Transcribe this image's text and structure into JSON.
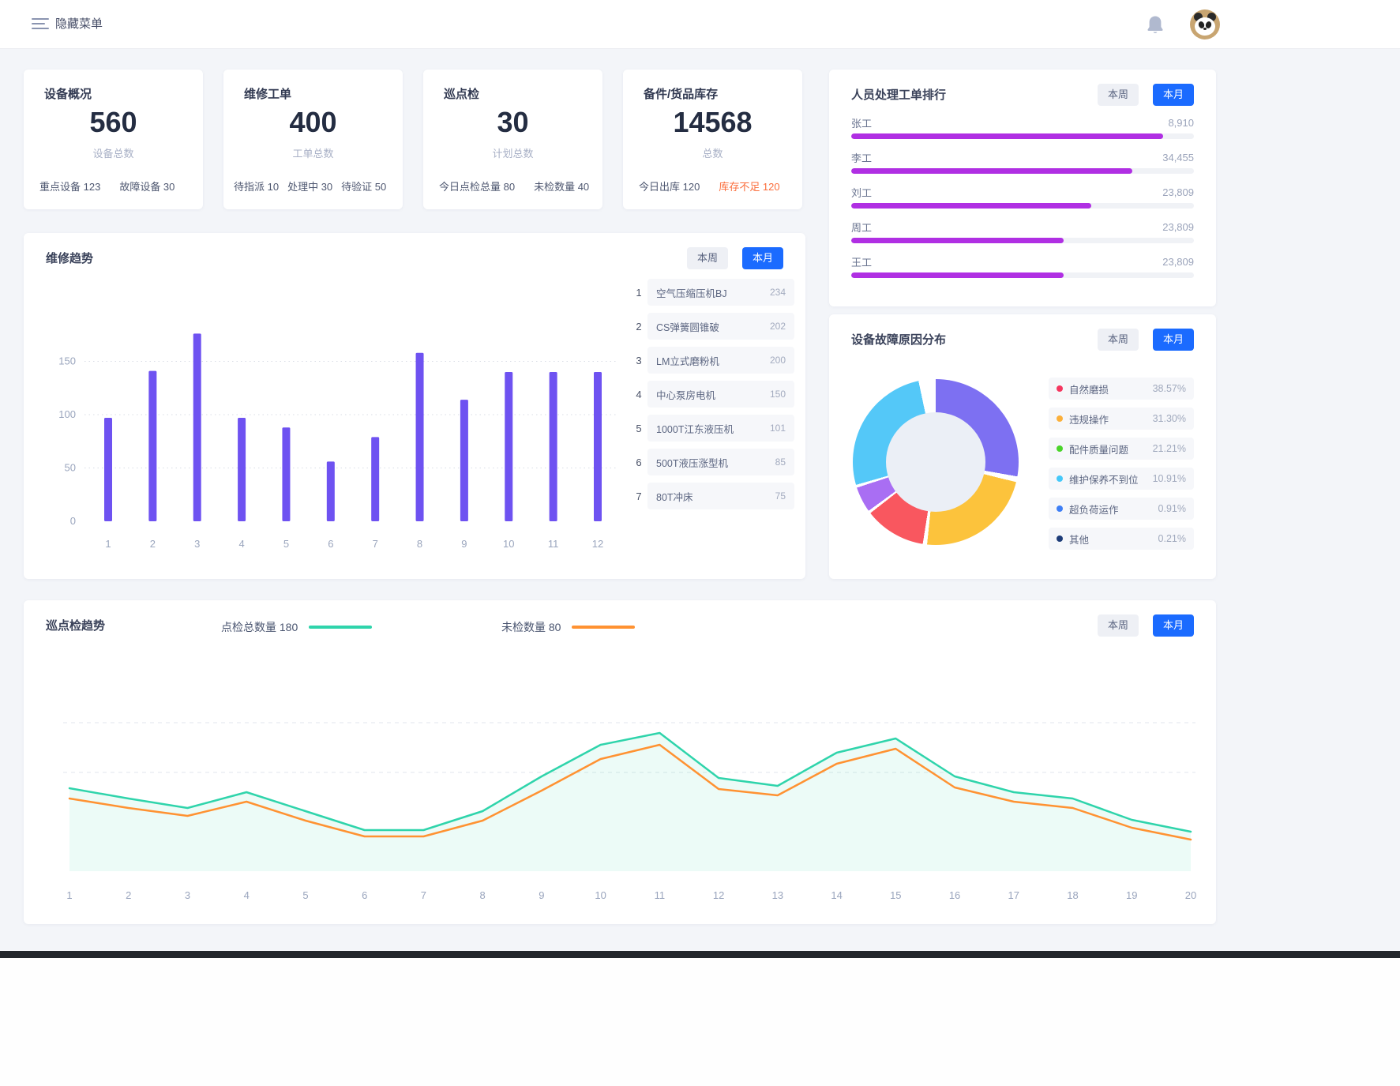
{
  "topbar": {
    "menu_label": "隐藏菜单"
  },
  "period_buttons": {
    "week": "本周",
    "month": "本月"
  },
  "colors": {
    "accent_blue": "#1b6bff",
    "bar_purple": "#6e52f1",
    "ranking_magenta": "#b02fe3",
    "teal_line": "#2fd4ab",
    "orange_line": "#ff9232",
    "alert_orange": "#fb6d3b",
    "page_bg": "#f3f5f9"
  },
  "stat_cards": [
    {
      "title": "设备概况",
      "value": "560",
      "value_label": "设备总数",
      "footer": [
        {
          "label": "重点设备",
          "value": "123"
        },
        {
          "label": "故障设备",
          "value": "30"
        }
      ]
    },
    {
      "title": "维修工单",
      "value": "400",
      "value_label": "工单总数",
      "footer": [
        {
          "label": "待指派",
          "value": "10"
        },
        {
          "label": "处理中",
          "value": "30"
        },
        {
          "label": "待验证",
          "value": "50"
        }
      ]
    },
    {
      "title": "巡点检",
      "value": "30",
      "value_label": "计划总数",
      "footer": [
        {
          "label": "今日点检总量",
          "value": "80"
        },
        {
          "label": "未检数量",
          "value": "40"
        }
      ]
    },
    {
      "title": "备件/货品库存",
      "value": "14568",
      "value_label": "总数",
      "footer": [
        {
          "label": "今日出库",
          "value": "120"
        },
        {
          "label": "库存不足",
          "value": "120",
          "highlight": true
        }
      ]
    }
  ],
  "ranking_panel": {
    "title": "人员处理工单排行",
    "rows": [
      {
        "name": "张工",
        "value": "8,910",
        "pct": 91
      },
      {
        "name": "李工",
        "value": "34,455",
        "pct": 82
      },
      {
        "name": "刘工",
        "value": "23,809",
        "pct": 70
      },
      {
        "name": "周工",
        "value": "23,809",
        "pct": 62
      },
      {
        "name": "王工",
        "value": "23,809",
        "pct": 62
      }
    ]
  },
  "repair_panel": {
    "title": "维修趋势",
    "list": [
      {
        "rank": "1",
        "label": "空气压缩压机BJ",
        "value": "234"
      },
      {
        "rank": "2",
        "label": "CS弹簧圆锥破",
        "value": "202"
      },
      {
        "rank": "3",
        "label": "LM立式磨粉机",
        "value": "200"
      },
      {
        "rank": "4",
        "label": "中心泵房电机",
        "value": "150"
      },
      {
        "rank": "5",
        "label": "1000T江东液压机",
        "value": "101"
      },
      {
        "rank": "6",
        "label": "500T液压涨型机",
        "value": "85"
      },
      {
        "rank": "7",
        "label": "80T冲床",
        "value": "75"
      }
    ]
  },
  "fault_panel": {
    "title": "设备故障原因分布",
    "legend": [
      {
        "label": "自然磨损",
        "value": "38.57%",
        "dot": "#f5365f"
      },
      {
        "label": "违规操作",
        "value": "31.30%",
        "dot": "#fbb03b"
      },
      {
        "label": "配件质量问题",
        "value": "21.21%",
        "dot": "#4ad42a"
      },
      {
        "label": "维护保养不到位",
        "value": "10.91%",
        "dot": "#45c8f9"
      },
      {
        "label": "超负荷运作",
        "value": "0.91%",
        "dot": "#3d7ef5"
      },
      {
        "label": "其他",
        "value": "0.21%",
        "dot": "#1d3c78"
      }
    ]
  },
  "inspection_panel": {
    "title": "巡点检趋势",
    "legend": [
      {
        "label": "点检总数量 180",
        "color": "#2fd4ab"
      },
      {
        "label": "未检数量 80",
        "color": "#ff9232"
      }
    ]
  },
  "chart_data": [
    {
      "id": "repair_trend",
      "type": "bar",
      "title": "维修趋势",
      "categories": [
        "1",
        "2",
        "3",
        "4",
        "5",
        "6",
        "7",
        "8",
        "9",
        "10",
        "11",
        "12"
      ],
      "values": [
        97,
        141,
        176,
        97,
        88,
        56,
        79,
        158,
        114,
        140,
        140,
        140
      ],
      "xlabel": "",
      "ylabel": "",
      "y_ticks": [
        0,
        50,
        100,
        150
      ],
      "ylim": [
        0,
        200
      ],
      "bar_color": "#6e52f1",
      "grid": "dotted-horizontal",
      "legend_position": "none"
    },
    {
      "id": "staff_ranking",
      "type": "bar",
      "title": "人员处理工单排行",
      "orientation": "horizontal",
      "categories": [
        "张工",
        "李工",
        "刘工",
        "周工",
        "王工"
      ],
      "values": [
        8910,
        34455,
        23809,
        23809,
        23809
      ],
      "bar_display_pct": [
        91,
        82,
        70,
        62,
        62
      ],
      "bar_color": "#b02fe3"
    },
    {
      "id": "fault_donut",
      "type": "pie",
      "title": "设备故障原因分布",
      "labels": [
        "自然磨损",
        "违规操作",
        "配件质量问题",
        "维护保养不到位",
        "超负荷运作",
        "其他"
      ],
      "values": [
        38.57,
        31.3,
        21.21,
        10.91,
        0.91,
        0.21
      ],
      "legend_position": "right",
      "hole_color": "#ebeff6",
      "slice_render": [
        {
          "color": "#7d70f2",
          "from": 0,
          "to": 100
        },
        {
          "color": "#ffffff",
          "from": 100,
          "to": 104
        },
        {
          "color": "#fcc33c",
          "from": 104,
          "to": 186
        },
        {
          "color": "#ffffff",
          "from": 186,
          "to": 189
        },
        {
          "color": "#f9575f",
          "from": 189,
          "to": 232
        },
        {
          "color": "#ffffff",
          "from": 232,
          "to": 234
        },
        {
          "color": "#a96ef3",
          "from": 234,
          "to": 252
        },
        {
          "color": "#ffffff",
          "from": 252,
          "to": 254
        },
        {
          "color": "#54c8f8",
          "from": 254,
          "to": 348
        },
        {
          "color": "#ffffff",
          "from": 348,
          "to": 360
        }
      ]
    },
    {
      "id": "inspection_trend",
      "type": "line",
      "title": "巡点检趋势",
      "x": [
        1,
        2,
        3,
        4,
        5,
        6,
        7,
        8,
        9,
        10,
        11,
        12,
        13,
        14,
        15,
        16,
        17,
        18,
        19,
        20
      ],
      "series": [
        {
          "name": "点检总数量",
          "color": "#2fd4ab",
          "area": true,
          "values": [
            105,
            92,
            80,
            100,
            76,
            52,
            52,
            76,
            120,
            160,
            175,
            118,
            108,
            150,
            168,
            120,
            100,
            92,
            65,
            50
          ]
        },
        {
          "name": "未检数量",
          "color": "#ff9232",
          "area": false,
          "values": [
            92,
            80,
            70,
            88,
            64,
            44,
            44,
            64,
            102,
            142,
            160,
            104,
            96,
            136,
            155,
            106,
            88,
            80,
            55,
            40
          ]
        }
      ],
      "ylim": [
        0,
        200
      ],
      "grid": "dashed-horizontal",
      "legend_position": "top"
    }
  ]
}
